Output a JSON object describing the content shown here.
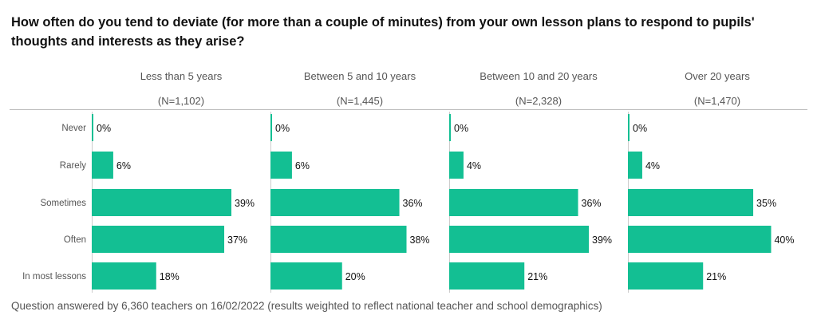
{
  "chart_data": {
    "type": "bar",
    "title": "How often do you tend to deviate (for more than a couple of minutes) from your own lesson plans to respond to pupils' thoughts and interests as they arise?",
    "categories": [
      "Never",
      "Rarely",
      "Sometimes",
      "Often",
      "In most lessons"
    ],
    "series": [
      {
        "name": "Less than 5 years",
        "n_label": "(N=1,102)",
        "values": [
          0,
          6,
          39,
          37,
          18
        ]
      },
      {
        "name": "Between 5 and 10 years",
        "n_label": "(N=1,445)",
        "values": [
          0,
          6,
          36,
          38,
          20
        ]
      },
      {
        "name": "Between 10 and 20 years",
        "n_label": "(N=2,328)",
        "values": [
          0,
          4,
          36,
          39,
          21
        ]
      },
      {
        "name": "Over 20 years",
        "n_label": "(N=1,470)",
        "values": [
          0,
          4,
          35,
          40,
          21
        ]
      }
    ],
    "value_suffix": "%",
    "xlim": [
      0,
      40
    ],
    "bar_color": "#13bf93",
    "grid": false,
    "legend": "none"
  },
  "footer": "Question answered by 6,360 teachers on 16/02/2022 (results weighted to reflect national teacher and school demographics)"
}
